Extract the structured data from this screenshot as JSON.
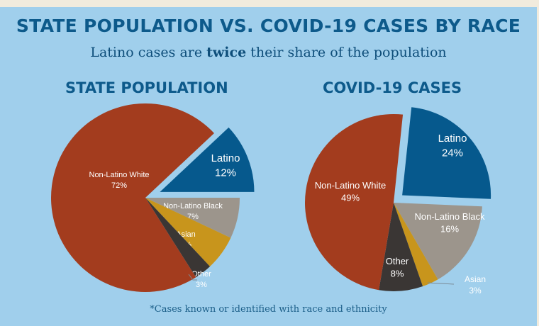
{
  "title": "STATE POPULATION VS. COVID-19 CASES BY RACE",
  "subtitle": {
    "before": "Latino cases are ",
    "bold": "twice",
    "after": " their share of the population"
  },
  "footnote": "*Cases known or identified with race and ethnicity",
  "colors": {
    "Latino": "#06598D",
    "Non-Latino Black": "#9C958C",
    "Asian": "#C8951C",
    "Other": "#3A3634",
    "Non-Latino White": "#A33C1E",
    "background": "#A0CFEC",
    "title": "#0D5A8B"
  },
  "chart_data": [
    {
      "type": "pie",
      "title": "STATE POPULATION",
      "exploded": "Latino",
      "slices": [
        {
          "label": "Latino",
          "value": 12,
          "text": "12%"
        },
        {
          "label": "Non-Latino Black",
          "value": 7,
          "text": "7%"
        },
        {
          "label": "Asian",
          "value": 6,
          "text": "6%"
        },
        {
          "label": "Other",
          "value": 3,
          "text": "3%"
        },
        {
          "label": "Non-Latino White",
          "value": 72,
          "text": "72%"
        }
      ]
    },
    {
      "type": "pie",
      "title": "COVID-19 CASES",
      "exploded": "Latino",
      "slices": [
        {
          "label": "Latino",
          "value": 24,
          "text": "24%"
        },
        {
          "label": "Non-Latino Black",
          "value": 16,
          "text": "16%"
        },
        {
          "label": "Asian",
          "value": 3,
          "text": "3%"
        },
        {
          "label": "Other",
          "value": 8,
          "text": "8%"
        },
        {
          "label": "Non-Latino White",
          "value": 49,
          "text": "49%"
        }
      ]
    }
  ]
}
